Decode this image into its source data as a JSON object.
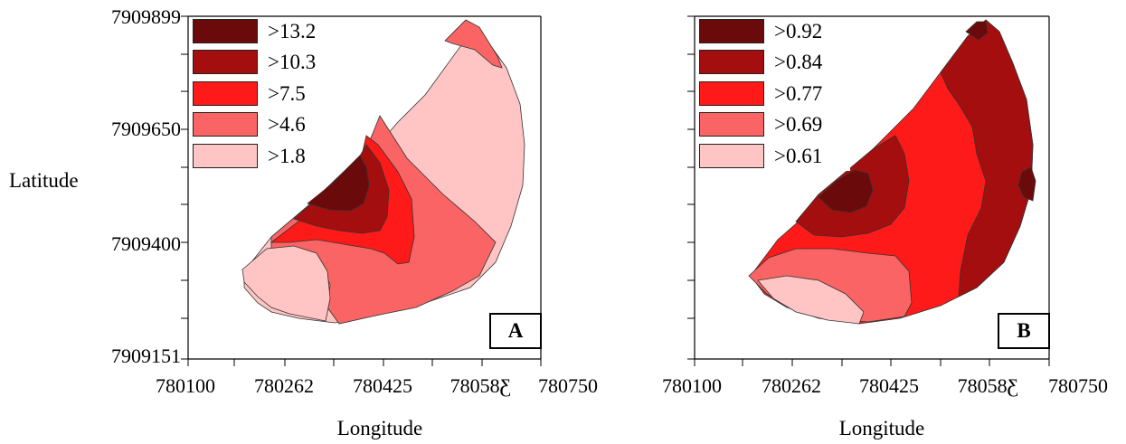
{
  "figure": {
    "y_axis_title": "Latitude",
    "x_axis_title": "Longitude",
    "y_ticks": [
      "7909899",
      "7909650",
      "7909400",
      "7909151"
    ],
    "x_ticks": [
      "780100",
      "780262",
      "780425",
      "78058Ƹ",
      "780750"
    ]
  },
  "panels": [
    {
      "label": "A",
      "legend": [
        {
          "label": ">13.2",
          "color": "#6b0a0a"
        },
        {
          "label": ">10.3",
          "color": "#a50e0e"
        },
        {
          "label": ">7.5",
          "color": "#ff1a1a"
        },
        {
          "label": ">4.6",
          "color": "#fa6464"
        },
        {
          "label": ">1.8",
          "color": "#ffc4c4"
        }
      ]
    },
    {
      "label": "B",
      "legend": [
        {
          "label": ">0.92",
          "color": "#6b0a0a"
        },
        {
          "label": ">0.84",
          "color": "#a50e0e"
        },
        {
          "label": ">0.77",
          "color": "#ff1a1a"
        },
        {
          "label": ">0.69",
          "color": "#fa6464"
        },
        {
          "label": ">0.61",
          "color": "#ffc4c4"
        }
      ]
    }
  ]
}
